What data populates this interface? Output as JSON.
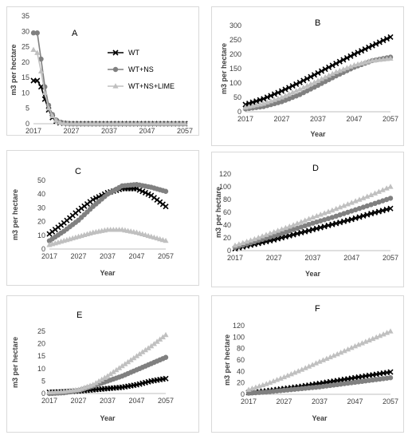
{
  "chart_data": [
    {
      "type": "line",
      "title": "A",
      "ylabel": "m3 per hectare",
      "xlabel": "",
      "ylim": [
        0,
        35
      ],
      "yticks": [
        0,
        5,
        10,
        15,
        20,
        25,
        30,
        35
      ],
      "xlim": [
        2017,
        2057
      ],
      "xticks": [
        2017,
        2027,
        2037,
        2047,
        2057
      ],
      "legend": "top-right",
      "series": [
        {
          "name": "WT",
          "color": "#000000",
          "marker": "x",
          "x": [
            2017,
            2018,
            2019,
            2020,
            2021,
            2022,
            2023,
            2024,
            2025,
            2026,
            2027,
            2030,
            2035,
            2040,
            2045,
            2050,
            2055,
            2057
          ],
          "y": [
            14,
            14,
            12,
            8,
            4.5,
            2,
            0.8,
            0.3,
            0.1,
            0,
            0,
            0,
            0,
            0,
            0,
            0,
            0,
            0
          ]
        },
        {
          "name": "WT+NS",
          "color": "#808080",
          "marker": "circle",
          "x": [
            2017,
            2018,
            2019,
            2020,
            2021,
            2022,
            2023,
            2024,
            2025,
            2026,
            2027,
            2030,
            2035,
            2040,
            2045,
            2050,
            2055,
            2057
          ],
          "y": [
            29.5,
            29.5,
            21,
            12,
            6,
            3,
            1.2,
            0.5,
            0.2,
            0.1,
            0,
            0,
            0,
            0,
            0,
            0,
            0,
            0
          ]
        },
        {
          "name": "WT+NS+LIME",
          "color": "#c0c0c0",
          "marker": "triangle",
          "x": [
            2017,
            2018,
            2019,
            2020,
            2021,
            2022,
            2023,
            2024,
            2025,
            2026,
            2027,
            2030,
            2035,
            2040,
            2045,
            2050,
            2055,
            2057
          ],
          "y": [
            24,
            23,
            17,
            10,
            5,
            2.5,
            1,
            0.4,
            0.1,
            0,
            0,
            0,
            0,
            0,
            0,
            0,
            0,
            0
          ]
        }
      ]
    },
    {
      "type": "line",
      "title": "B",
      "ylabel": "m3 per hectare",
      "xlabel": "Year",
      "ylim": [
        0,
        300
      ],
      "yticks": [
        0,
        50,
        100,
        150,
        200,
        250,
        300
      ],
      "xlim": [
        2017,
        2057
      ],
      "xticks": [
        2017,
        2027,
        2037,
        2047,
        2057
      ],
      "series": [
        {
          "name": "WT",
          "color": "#000000",
          "marker": "x",
          "x": [
            2017,
            2022,
            2027,
            2032,
            2037,
            2042,
            2047,
            2052,
            2057
          ],
          "y": [
            25,
            45,
            72,
            102,
            135,
            168,
            200,
            230,
            260
          ]
        },
        {
          "name": "WT+NS",
          "color": "#808080",
          "marker": "circle",
          "x": [
            2017,
            2022,
            2027,
            2032,
            2037,
            2042,
            2047,
            2052,
            2057
          ],
          "y": [
            10,
            18,
            35,
            60,
            92,
            125,
            155,
            178,
            190
          ]
        },
        {
          "name": "WT+NS+LIME",
          "color": "#c0c0c0",
          "marker": "triangle",
          "x": [
            2017,
            2022,
            2027,
            2032,
            2037,
            2042,
            2047,
            2052,
            2057
          ],
          "y": [
            15,
            28,
            50,
            78,
            108,
            138,
            162,
            178,
            185
          ]
        }
      ]
    },
    {
      "type": "line",
      "title": "C",
      "ylabel": "m3 per hectare",
      "xlabel": "Year",
      "ylim": [
        0,
        50
      ],
      "yticks": [
        0,
        10,
        20,
        30,
        40,
        50
      ],
      "xlim": [
        2017,
        2057
      ],
      "xticks": [
        2017,
        2027,
        2037,
        2047,
        2057
      ],
      "series": [
        {
          "name": "WT",
          "color": "#000000",
          "marker": "x",
          "x": [
            2017,
            2022,
            2027,
            2032,
            2037,
            2042,
            2047,
            2052,
            2057
          ],
          "y": [
            11,
            19,
            28,
            36,
            41,
            44,
            44,
            39,
            31
          ]
        },
        {
          "name": "WT+NS",
          "color": "#808080",
          "marker": "circle",
          "x": [
            2017,
            2022,
            2027,
            2032,
            2037,
            2042,
            2047,
            2052,
            2057
          ],
          "y": [
            6,
            13,
            21,
            31,
            40,
            46,
            47,
            45,
            42
          ]
        },
        {
          "name": "WT+NS+LIME",
          "color": "#c0c0c0",
          "marker": "triangle",
          "x": [
            2017,
            2022,
            2027,
            2032,
            2037,
            2042,
            2047,
            2052,
            2057
          ],
          "y": [
            3,
            6,
            9,
            12,
            14,
            14,
            12,
            9,
            6
          ]
        }
      ]
    },
    {
      "type": "line",
      "title": "D",
      "ylabel": "m3 per hectare",
      "xlabel": "Year",
      "ylim": [
        0,
        120
      ],
      "yticks": [
        0,
        20,
        40,
        60,
        80,
        100,
        120
      ],
      "xlim": [
        2017,
        2057
      ],
      "xticks": [
        2017,
        2027,
        2037,
        2047,
        2057
      ],
      "series": [
        {
          "name": "WT",
          "color": "#000000",
          "marker": "x",
          "x": [
            2017,
            2022,
            2027,
            2032,
            2037,
            2042,
            2047,
            2052,
            2057
          ],
          "y": [
            3,
            10,
            17,
            25,
            33,
            41,
            49,
            58,
            66
          ]
        },
        {
          "name": "WT+NS",
          "color": "#808080",
          "marker": "circle",
          "x": [
            2017,
            2022,
            2027,
            2032,
            2037,
            2042,
            2047,
            2052,
            2057
          ],
          "y": [
            5,
            14,
            23,
            33,
            43,
            52,
            62,
            72,
            82
          ]
        },
        {
          "name": "WT+NS+LIME",
          "color": "#c0c0c0",
          "marker": "triangle",
          "x": [
            2017,
            2022,
            2027,
            2032,
            2037,
            2042,
            2047,
            2052,
            2057
          ],
          "y": [
            8,
            18,
            29,
            40,
            52,
            63,
            75,
            87,
            100
          ]
        }
      ]
    },
    {
      "type": "line",
      "title": "E",
      "ylabel": "m3 per hectare",
      "xlabel": "Year",
      "ylim": [
        0,
        25
      ],
      "yticks": [
        0,
        5,
        10,
        15,
        20,
        25
      ],
      "xlim": [
        2017,
        2057
      ],
      "xticks": [
        2017,
        2027,
        2037,
        2047,
        2057
      ],
      "series": [
        {
          "name": "WT",
          "color": "#000000",
          "marker": "x",
          "x": [
            2017,
            2022,
            2027,
            2032,
            2037,
            2042,
            2047,
            2052,
            2057
          ],
          "y": [
            0.5,
            0.7,
            1,
            1.5,
            2,
            2.5,
            3.5,
            5,
            6
          ]
        },
        {
          "name": "WT+NS",
          "color": "#808080",
          "marker": "circle",
          "x": [
            2017,
            2022,
            2027,
            2032,
            2037,
            2042,
            2047,
            2052,
            2057
          ],
          "y": [
            0,
            0.3,
            1.2,
            3,
            5,
            7,
            9.5,
            12,
            14.5
          ]
        },
        {
          "name": "WT+NS+LIME",
          "color": "#c0c0c0",
          "marker": "triangle",
          "x": [
            2017,
            2022,
            2027,
            2032,
            2037,
            2042,
            2047,
            2052,
            2057
          ],
          "y": [
            0.5,
            0.8,
            1.5,
            3.5,
            7,
            11,
            15,
            19,
            23.5
          ]
        }
      ]
    },
    {
      "type": "line",
      "title": "F",
      "ylabel": "m3 per hectare",
      "xlabel": "Year",
      "ylim": [
        0,
        120
      ],
      "yticks": [
        0,
        20,
        40,
        60,
        80,
        100,
        120
      ],
      "xlim": [
        2017,
        2057
      ],
      "xticks": [
        2017,
        2027,
        2037,
        2047,
        2057
      ],
      "series": [
        {
          "name": "WT",
          "color": "#000000",
          "marker": "x",
          "x": [
            2017,
            2022,
            2027,
            2032,
            2037,
            2042,
            2047,
            2052,
            2057
          ],
          "y": [
            3,
            6,
            10,
            14,
            19,
            24,
            29,
            34,
            39
          ]
        },
        {
          "name": "WT+NS",
          "color": "#808080",
          "marker": "circle",
          "x": [
            2017,
            2022,
            2027,
            2032,
            2037,
            2042,
            2047,
            2052,
            2057
          ],
          "y": [
            2,
            4,
            7,
            10,
            13,
            17,
            21,
            25,
            29
          ]
        },
        {
          "name": "WT+NS+LIME",
          "color": "#c0c0c0",
          "marker": "triangle",
          "x": [
            2017,
            2022,
            2027,
            2032,
            2037,
            2042,
            2047,
            2052,
            2057
          ],
          "y": [
            8,
            18,
            30,
            43,
            57,
            70,
            84,
            97,
            110
          ]
        }
      ]
    }
  ]
}
